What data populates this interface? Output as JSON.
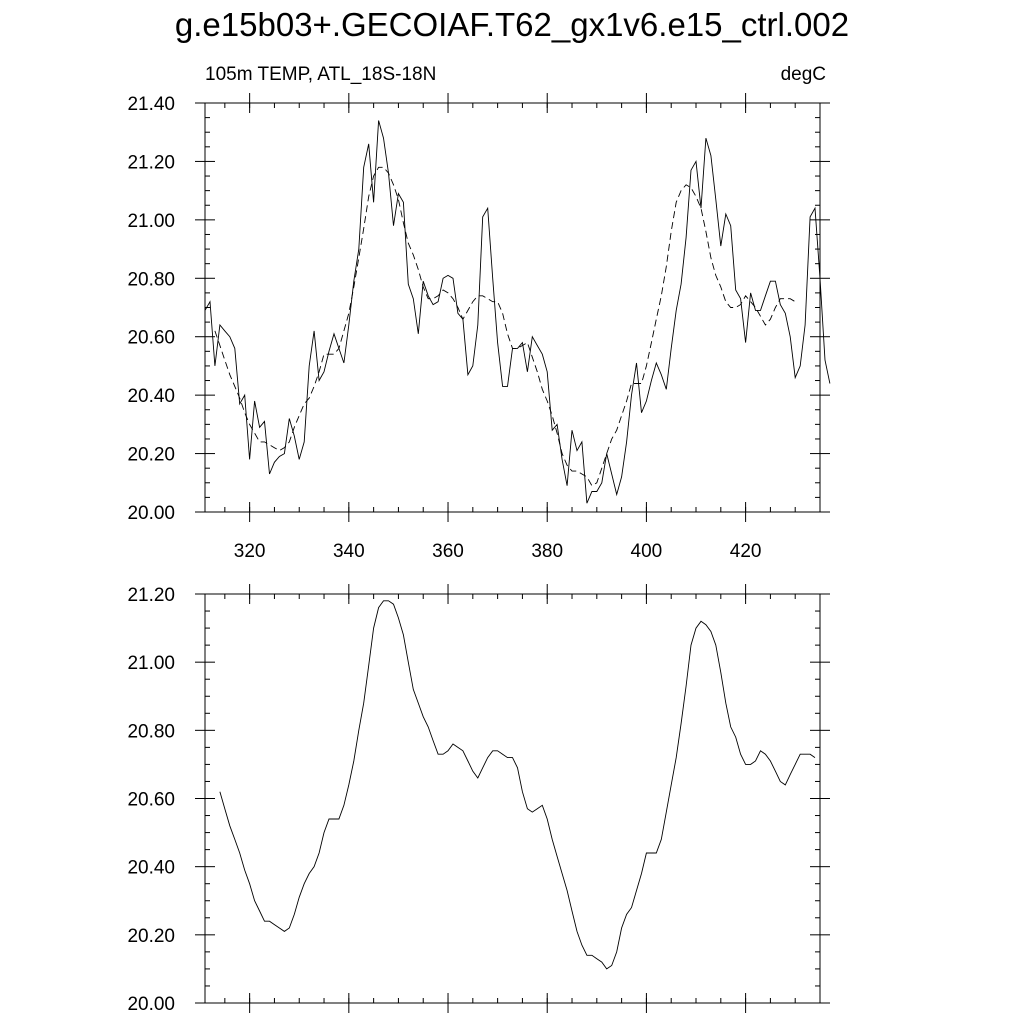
{
  "title": "g.e15b03+.GECOIAF.T62_gx1v6.e15_ctrl.002",
  "subtitle_left": "105m TEMP, ATL_18S-18N",
  "subtitle_right": "degC",
  "colors": {
    "line": "#000000",
    "background": "#ffffff"
  },
  "chart_data": [
    {
      "type": "line",
      "title": "",
      "xlabel": "",
      "ylabel": "",
      "xlim": [
        311,
        435
      ],
      "ylim": [
        20.0,
        21.4
      ],
      "grid": false,
      "x_ticks": [
        320,
        340,
        360,
        380,
        400,
        420
      ],
      "x_tick_labels": [
        "320",
        "340",
        "360",
        "380",
        "400",
        "420"
      ],
      "y_ticks": [
        20.0,
        20.2,
        20.4,
        20.6,
        20.8,
        21.0,
        21.2,
        21.4
      ],
      "y_tick_labels": [
        "20.00",
        "20.20",
        "20.40",
        "20.60",
        "20.80",
        "21.00",
        "21.20",
        "21.40"
      ],
      "series": [
        {
          "style": "solid",
          "x_start": 311,
          "x_step": 1,
          "values": [
            20.69,
            20.72,
            20.5,
            20.64,
            20.62,
            20.6,
            20.56,
            20.37,
            20.4,
            20.18,
            20.38,
            20.29,
            20.31,
            20.13,
            20.17,
            20.19,
            20.2,
            20.32,
            20.26,
            20.18,
            20.24,
            20.5,
            20.62,
            20.45,
            20.48,
            20.55,
            20.61,
            20.56,
            20.51,
            20.64,
            20.79,
            20.9,
            21.18,
            21.26,
            21.06,
            21.34,
            21.28,
            21.16,
            20.98,
            21.09,
            21.06,
            20.78,
            20.73,
            20.61,
            20.79,
            20.74,
            20.71,
            20.72,
            20.8,
            20.81,
            20.8,
            20.68,
            20.66,
            20.47,
            20.5,
            20.64,
            21.01,
            21.04,
            20.8,
            20.58,
            20.43,
            20.43,
            20.56,
            20.56,
            20.58,
            20.48,
            20.6,
            20.57,
            20.54,
            20.48,
            20.28,
            20.3,
            20.18,
            20.09,
            20.28,
            20.21,
            20.24,
            20.03,
            20.07,
            20.07,
            20.1,
            20.2,
            20.13,
            20.06,
            20.12,
            20.24,
            20.4,
            20.51,
            20.34,
            20.38,
            20.45,
            20.51,
            20.47,
            20.42,
            20.56,
            20.69,
            20.78,
            20.94,
            21.17,
            21.2,
            21.04,
            21.28,
            21.22,
            21.07,
            20.91,
            21.02,
            20.98,
            20.76,
            20.73,
            20.58,
            20.75,
            20.69,
            20.69,
            20.74,
            20.79,
            20.79,
            20.71,
            20.68,
            20.6,
            20.46,
            20.5,
            20.64,
            21.01,
            21.04,
            20.8,
            20.52,
            20.44
          ]
        },
        {
          "style": "dashed",
          "x_start": 313,
          "x_step": 1,
          "values": [
            20.62,
            20.57,
            20.52,
            20.47,
            20.43,
            20.39,
            20.34,
            20.3,
            20.27,
            20.24,
            20.24,
            20.23,
            20.22,
            20.21,
            20.22,
            20.24,
            20.29,
            20.33,
            20.37,
            20.39,
            20.43,
            20.48,
            20.54,
            20.54,
            20.54,
            20.56,
            20.62,
            20.68,
            20.77,
            20.87,
            20.97,
            21.08,
            21.15,
            21.18,
            21.18,
            21.16,
            21.12,
            21.07,
            20.99,
            20.92,
            20.88,
            20.83,
            20.77,
            20.73,
            20.73,
            20.74,
            20.76,
            20.75,
            20.73,
            20.7,
            20.66,
            20.69,
            20.72,
            20.74,
            20.74,
            20.73,
            20.72,
            20.72,
            20.68,
            20.61,
            20.56,
            20.56,
            20.57,
            20.58,
            20.53,
            20.48,
            20.42,
            20.38,
            20.33,
            20.27,
            20.2,
            20.16,
            20.14,
            20.14,
            20.13,
            20.12,
            20.09,
            20.1,
            20.15,
            20.2,
            20.25,
            20.28,
            20.33,
            20.38,
            20.44,
            20.44,
            20.44,
            20.5,
            20.58,
            20.66,
            20.74,
            20.84,
            20.96,
            21.06,
            21.1,
            21.12,
            21.11,
            21.08,
            21.04,
            20.96,
            20.87,
            20.81,
            20.77,
            20.72,
            20.7,
            20.7,
            20.71,
            20.74,
            20.72,
            20.7,
            20.67,
            20.64,
            20.66,
            20.7,
            20.73,
            20.73,
            20.73,
            20.72
          ]
        }
      ]
    },
    {
      "type": "line",
      "title": "",
      "xlabel": "",
      "ylabel": "",
      "xlim": [
        311,
        435
      ],
      "ylim": [
        20.0,
        21.2
      ],
      "grid": false,
      "x_ticks": [
        320,
        340,
        360,
        380,
        400,
        420
      ],
      "x_tick_labels": [],
      "y_ticks": [
        20.0,
        20.2,
        20.4,
        20.6,
        20.8,
        21.0,
        21.2
      ],
      "y_tick_labels": [
        "20.00",
        "20.20",
        "20.40",
        "20.60",
        "20.80",
        "21.00",
        "21.20"
      ],
      "series": [
        {
          "style": "solid",
          "x_start": 314,
          "x_step": 1,
          "values": [
            20.62,
            20.57,
            20.52,
            20.48,
            20.44,
            20.39,
            20.35,
            20.3,
            20.27,
            20.24,
            20.24,
            20.23,
            20.22,
            20.21,
            20.22,
            20.26,
            20.31,
            20.35,
            20.38,
            20.4,
            20.44,
            20.5,
            20.54,
            20.54,
            20.54,
            20.58,
            20.64,
            20.71,
            20.8,
            20.88,
            20.99,
            21.1,
            21.16,
            21.18,
            21.18,
            21.17,
            21.13,
            21.08,
            21.0,
            20.92,
            20.88,
            20.84,
            20.81,
            20.77,
            20.73,
            20.73,
            20.74,
            20.76,
            20.75,
            20.74,
            20.71,
            20.68,
            20.66,
            20.69,
            20.72,
            20.74,
            20.74,
            20.73,
            20.72,
            20.72,
            20.69,
            20.62,
            20.57,
            20.56,
            20.57,
            20.58,
            20.54,
            20.48,
            20.43,
            20.38,
            20.33,
            20.27,
            20.21,
            20.17,
            20.14,
            20.14,
            20.13,
            20.12,
            20.1,
            20.11,
            20.15,
            20.22,
            20.26,
            20.28,
            20.33,
            20.38,
            20.44,
            20.44,
            20.44,
            20.48,
            20.56,
            20.64,
            20.72,
            20.82,
            20.93,
            21.05,
            21.1,
            21.12,
            21.11,
            21.09,
            21.05,
            20.97,
            20.88,
            20.81,
            20.78,
            20.73,
            20.7,
            20.7,
            20.71,
            20.74,
            20.73,
            20.71,
            20.68,
            20.65,
            20.64,
            20.67,
            20.7,
            20.73,
            20.73,
            20.73,
            20.72
          ]
        }
      ]
    }
  ]
}
